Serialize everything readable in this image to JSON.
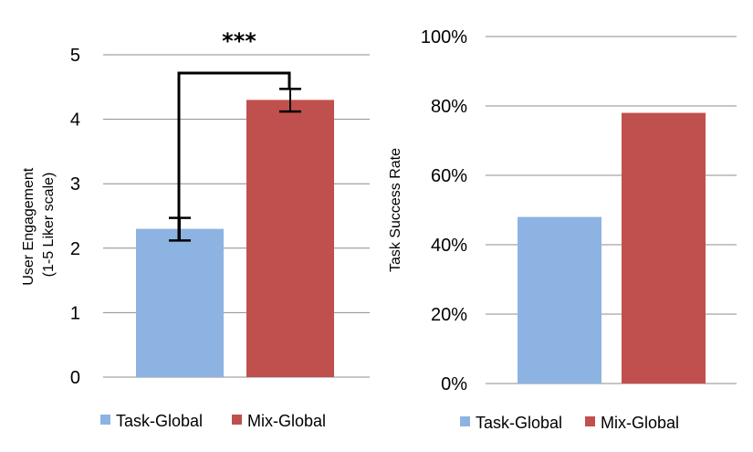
{
  "colors": {
    "task_global": "#8db3e2",
    "mix_global": "#c0504d",
    "grid": "#8c8c8c"
  },
  "chart_data": [
    {
      "type": "bar",
      "categories": [
        "Task-Global",
        "Mix-Global"
      ],
      "values": [
        2.3,
        4.3
      ],
      "error_bars": [
        [
          2.12,
          2.47
        ],
        [
          4.12,
          4.47
        ]
      ],
      "ylabel_lines": [
        "User Engagement",
        "(1-5 Liker scale)"
      ],
      "ylim": [
        0,
        5
      ],
      "yticks": [
        "0",
        "1",
        "2",
        "3",
        "4",
        "5"
      ],
      "significance": "***",
      "grid": true,
      "legend": [
        "Task-Global",
        "Mix-Global"
      ],
      "legend_position": "bottom"
    },
    {
      "type": "bar",
      "categories": [
        "Task-Global",
        "Mix-Global"
      ],
      "values": [
        48,
        78
      ],
      "ylabel": "Task Success Rate",
      "ylim": [
        0,
        100
      ],
      "yticks": [
        "0%",
        "20%",
        "40%",
        "60%",
        "80%",
        "100%"
      ],
      "grid": true,
      "legend": [
        "Task-Global",
        "Mix-Global"
      ],
      "legend_position": "bottom"
    }
  ]
}
